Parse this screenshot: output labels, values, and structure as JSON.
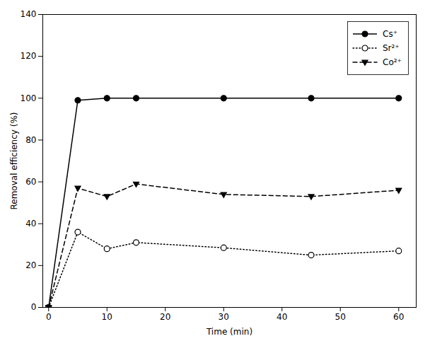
{
  "chart_data": {
    "type": "line",
    "xlabel": "Time (min)",
    "ylabel": "Removal efficiency (%)",
    "x": [
      0,
      5,
      10,
      15,
      30,
      45,
      60
    ],
    "series": [
      {
        "name": "Cs⁺",
        "color": "black",
        "line_style": "solid",
        "marker": "circle",
        "values": [
          0,
          99,
          100,
          100,
          100,
          100,
          100
        ]
      },
      {
        "name": "Sr²⁺",
        "color": "black",
        "line_style": "dotted",
        "marker": "circle-open",
        "values": [
          0,
          36,
          28,
          31,
          28.5,
          25,
          27
        ]
      },
      {
        "name": "Co²⁺",
        "color": "black",
        "line_style": "dashed",
        "marker": "triangle-down",
        "values": [
          0,
          57,
          53,
          59,
          54,
          53,
          56
        ]
      }
    ],
    "xlim": [
      -1,
      63
    ],
    "ylim": [
      0,
      140
    ],
    "xticks": [
      0,
      10,
      20,
      30,
      40,
      50,
      60
    ],
    "yticks": [
      0,
      20,
      40,
      60,
      80,
      100,
      120,
      140
    ],
    "legend": "upper right",
    "grid": false
  }
}
